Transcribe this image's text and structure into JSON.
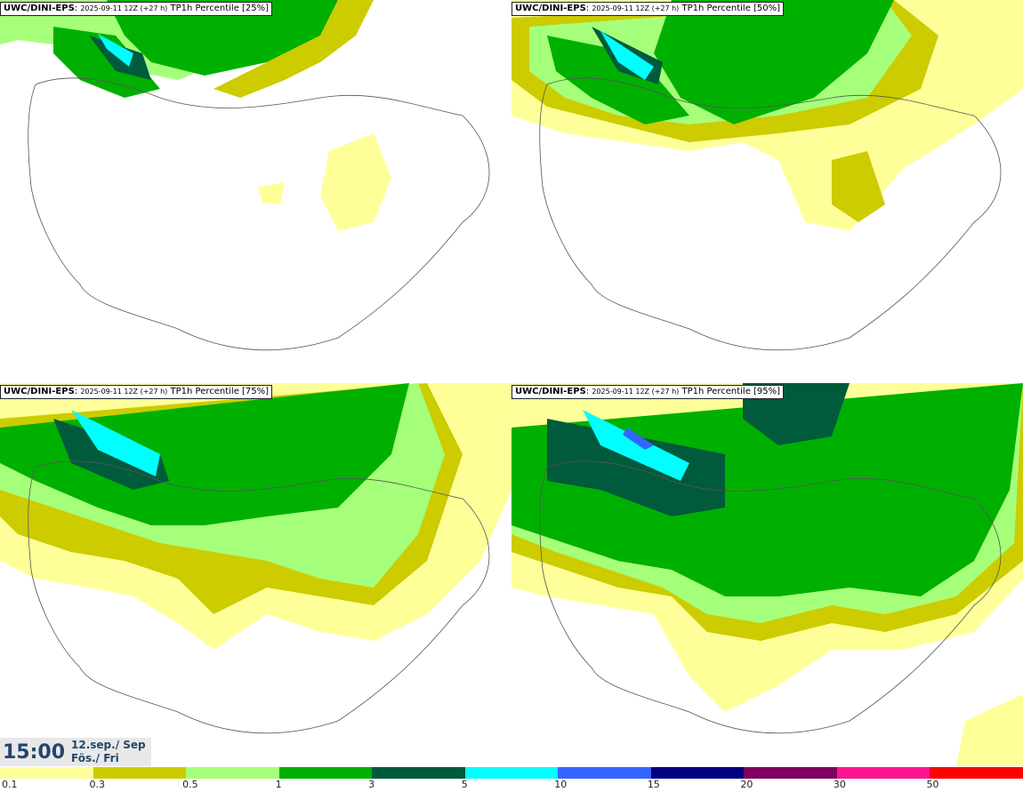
{
  "panels": [
    {
      "model": "UWC/DINI-EPS",
      "run": "2025-09-11 12Z (+27 h)",
      "title": "TP1h Percentile [25%]"
    },
    {
      "model": "UWC/DINI-EPS",
      "run": "2025-09-11 12Z (+27 h)",
      "title": "TP1h Percentile [50%]"
    },
    {
      "model": "UWC/DINI-EPS",
      "run": "2025-09-11 12Z (+27 h)",
      "title": "TP1h Percentile [75%]"
    },
    {
      "model": "UWC/DINI-EPS",
      "run": "2025-09-11 12Z (+27 h)",
      "title": "TP1h Percentile [95%]"
    }
  ],
  "valid_time": {
    "time": "15:00",
    "date_line1": "12.sep./ Sep",
    "date_line2": "Fös./ Fri"
  },
  "colorbar": {
    "colors": [
      "#ffff99",
      "#cccc00",
      "#a6ff7a",
      "#00b000",
      "#005a3c",
      "#00ffff",
      "#3366ff",
      "#000080",
      "#800060",
      "#ff1493",
      "#ff0000"
    ],
    "ticks": [
      "0.1",
      "0.3",
      "0.5",
      "1",
      "3",
      "5",
      "10",
      "15",
      "20",
      "30",
      "50"
    ]
  }
}
